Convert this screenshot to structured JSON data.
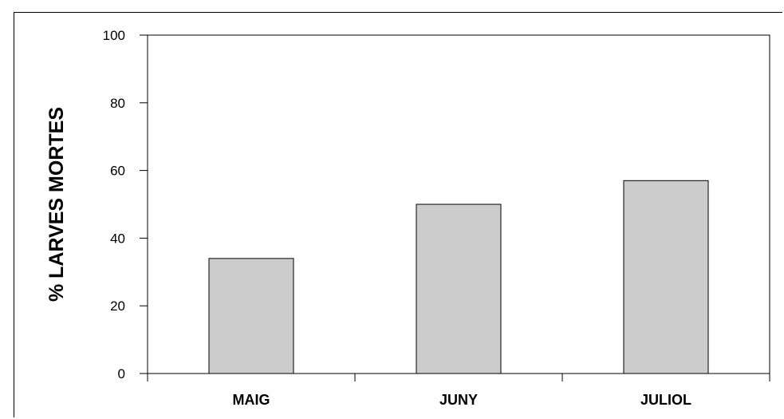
{
  "chart_data": {
    "type": "bar",
    "title": "",
    "xlabel": "",
    "ylabel": "% LARVES MORTES",
    "categories": [
      "MAIG",
      "JUNY",
      "JULIOL"
    ],
    "values": [
      34,
      50,
      57
    ],
    "ylim": [
      0,
      100
    ],
    "yticks": [
      0,
      20,
      40,
      60,
      80,
      100
    ],
    "grid": false,
    "bar_color": "#cccccc",
    "bar_edge_color": "#000000"
  }
}
